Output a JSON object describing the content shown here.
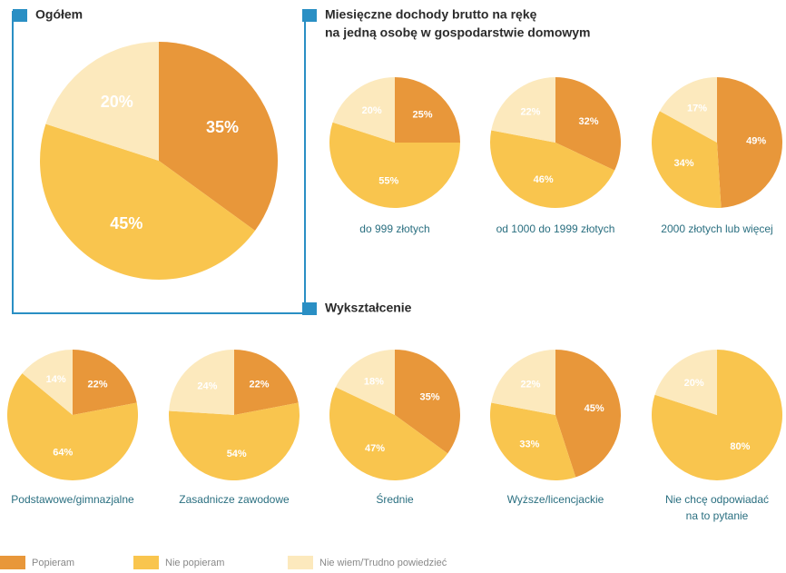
{
  "chart_data": {
    "type": "pie",
    "categories": [
      "Popieram",
      "Nie popieram",
      "Nie wiem/Trudno powiedzieć"
    ],
    "colors": [
      "#e8973a",
      "#f9c54e",
      "#fce9bd"
    ],
    "sections": [
      {
        "title": [
          "Ogółem"
        ],
        "pies": [
          {
            "values": [
              35,
              45,
              20
            ],
            "value_labels": [
              "35%",
              "45%",
              "20%"
            ]
          }
        ]
      },
      {
        "title": [
          "Miesięczne dochody brutto na rękę",
          "na jedną osobę w gospodarstwie domowym"
        ],
        "pies": [
          {
            "label": [
              "do 999 złotych"
            ],
            "values": [
              25,
              55,
              20
            ],
            "value_labels": [
              "25%",
              "55%",
              "20%"
            ]
          },
          {
            "label": [
              "od 1000 do 1999 złotych"
            ],
            "values": [
              32,
              46,
              22
            ],
            "value_labels": [
              "32%",
              "46%",
              "22%"
            ]
          },
          {
            "label": [
              "2000 złotych lub więcej"
            ],
            "values": [
              49,
              34,
              17
            ],
            "value_labels": [
              "49%",
              "34%",
              "17%"
            ]
          }
        ]
      },
      {
        "title": [
          "Wykształcenie"
        ],
        "pies": [
          {
            "label": [
              "Podstawowe/gimnazjalne"
            ],
            "values": [
              22,
              64,
              14
            ],
            "value_labels": [
              "22%",
              "64%",
              "14%"
            ]
          },
          {
            "label": [
              "Zasadnicze zawodowe"
            ],
            "values": [
              22,
              54,
              24
            ],
            "value_labels": [
              "22%",
              "54%",
              "24%"
            ]
          },
          {
            "label": [
              "Średnie"
            ],
            "values": [
              35,
              47,
              18
            ],
            "value_labels": [
              "35%",
              "47%",
              "18%"
            ]
          },
          {
            "label": [
              "Wyższe/licencjackie"
            ],
            "values": [
              45,
              33,
              22
            ],
            "value_labels": [
              "45%",
              "33%",
              "22%"
            ]
          },
          {
            "label": [
              "Nie chcę odpowiadać",
              "na to pytanie"
            ],
            "values": [
              0,
              80,
              20
            ],
            "value_labels": [
              null,
              "80%",
              "20%"
            ]
          }
        ]
      }
    ]
  }
}
